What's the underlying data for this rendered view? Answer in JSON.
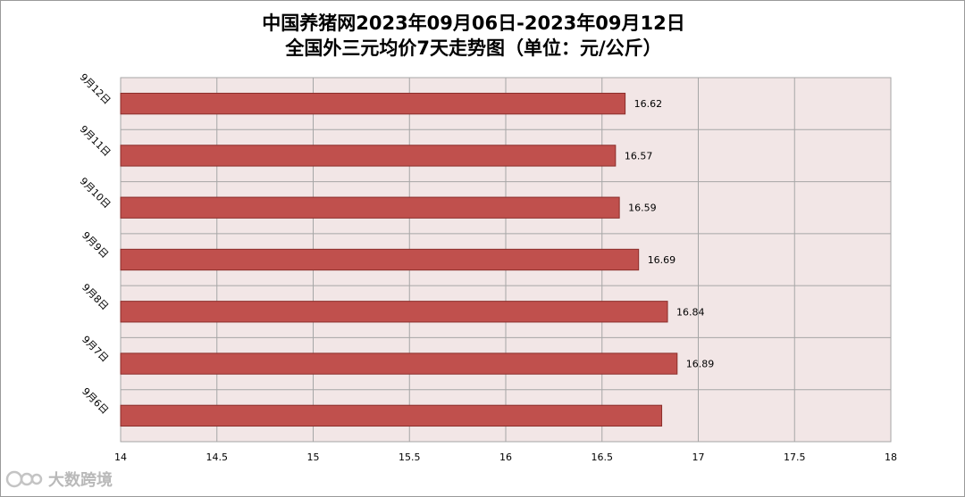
{
  "title_line1": "中国养猪网2023年09月06日-2023年09月12日",
  "title_line2": "全国外三元均价7天走势图（单位：元/公斤）",
  "watermark": "大数跨境",
  "colors": {
    "bar": "#c0504d",
    "bar_border": "#8b2e2b",
    "plot_bg": "#f2e6e6",
    "grid": "#a6a6a6"
  },
  "chart_data": {
    "type": "bar",
    "orientation": "horizontal",
    "categories": [
      "9月12日",
      "9月11日",
      "9月10日",
      "9月9日",
      "9月8日",
      "9月7日",
      "9月6日"
    ],
    "values": [
      16.62,
      16.57,
      16.59,
      16.69,
      16.84,
      16.89,
      16.81
    ],
    "data_labels": [
      "16.62",
      "16.57",
      "16.59",
      "16.69",
      "16.84",
      "16.89",
      ""
    ],
    "xlim": [
      14,
      18
    ],
    "xticks": [
      "14",
      "14.5",
      "15",
      "15.5",
      "16",
      "16.5",
      "17",
      "17.5",
      "18"
    ],
    "grid": true
  }
}
